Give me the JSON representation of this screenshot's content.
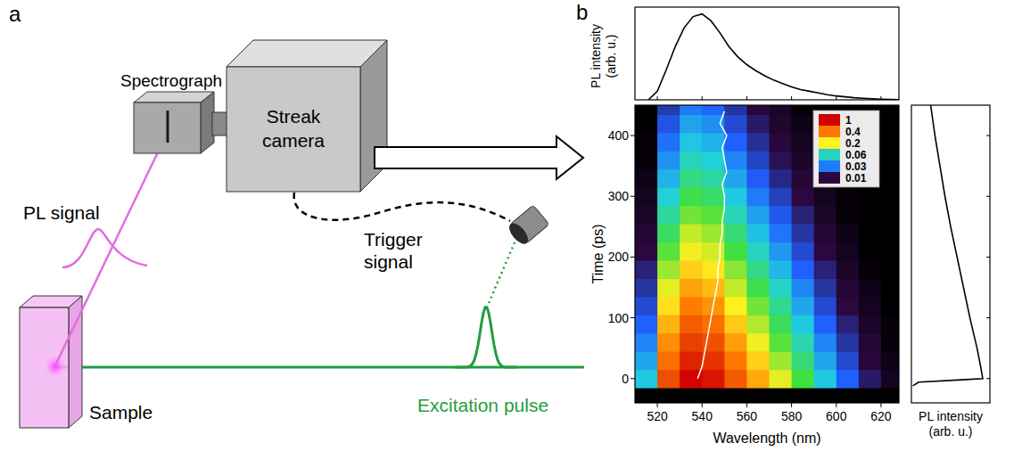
{
  "diagram": {
    "letter": "a",
    "spectrograph": "Spectrograph",
    "streak_camera": "Streak camera",
    "pl_signal": "PL signal",
    "trigger_signal": "Trigger signal",
    "sample": "Sample",
    "excitation_pulse": "Excitation pulse"
  },
  "chart_data": {
    "type": "heatmap",
    "letter": "b",
    "x_label": "Wavelength (nm)",
    "y_label": "Time (ps)",
    "xlim": [
      510,
      628
    ],
    "xticks": [
      520,
      540,
      560,
      580,
      600,
      620
    ],
    "ylim": [
      -40,
      450
    ],
    "yticks": [
      0,
      100,
      200,
      300,
      400
    ],
    "x_centers": [
      515,
      525,
      535,
      545,
      555,
      565,
      575,
      585,
      595,
      605,
      615,
      625
    ],
    "y_centers": [
      0,
      30,
      60,
      90,
      120,
      150,
      180,
      210,
      240,
      270,
      300,
      330,
      360,
      390,
      420,
      450
    ],
    "cells": [
      [
        0.05,
        0.55,
        0.97,
        0.85,
        0.5,
        0.3,
        0.18,
        0.1,
        0.05,
        0.025,
        0.012,
        0.005
      ],
      [
        0.04,
        0.43,
        0.77,
        0.67,
        0.4,
        0.24,
        0.14,
        0.079,
        0.04,
        0.02,
        0.009,
        0.004
      ],
      [
        0.032,
        0.35,
        0.61,
        0.54,
        0.32,
        0.19,
        0.11,
        0.063,
        0.032,
        0.016,
        0.008,
        0.003
      ],
      [
        0.025,
        0.28,
        0.49,
        0.43,
        0.25,
        0.15,
        0.09,
        0.05,
        0.025,
        0.013,
        0.006,
        0.003
      ],
      [
        0.02,
        0.22,
        0.39,
        0.34,
        0.2,
        0.12,
        0.072,
        0.04,
        0.02,
        0.01,
        0.005,
        0.002
      ],
      [
        0.016,
        0.18,
        0.31,
        0.27,
        0.16,
        0.096,
        0.058,
        0.032,
        0.016,
        0.008,
        0.004,
        0.002
      ],
      [
        0.013,
        0.14,
        0.24,
        0.21,
        0.13,
        0.075,
        0.045,
        0.025,
        0.013,
        0.006,
        0.003,
        0.001
      ],
      [
        0.01,
        0.11,
        0.19,
        0.17,
        0.1,
        0.06,
        0.036,
        0.02,
        0.01,
        0.005,
        0.002,
        0.001
      ],
      [
        0.008,
        0.088,
        0.16,
        0.14,
        0.08,
        0.048,
        0.029,
        0.016,
        0.008,
        0.004,
        0.002,
        0.001
      ],
      [
        0.006,
        0.069,
        0.12,
        0.11,
        0.063,
        0.038,
        0.023,
        0.013,
        0.006,
        0.003,
        0.002,
        0.001
      ],
      [
        0.005,
        0.055,
        0.097,
        0.085,
        0.05,
        0.03,
        0.018,
        0.01,
        0.005,
        0.003,
        0.001,
        0.001
      ],
      [
        0.004,
        0.043,
        0.077,
        0.067,
        0.04,
        0.024,
        0.014,
        0.008,
        0.004,
        0.002,
        0.001,
        0
      ],
      [
        0.003,
        0.035,
        0.061,
        0.054,
        0.032,
        0.019,
        0.011,
        0.006,
        0.003,
        0.002,
        0.001,
        0
      ],
      [
        0.003,
        0.028,
        0.049,
        0.043,
        0.025,
        0.015,
        0.009,
        0.005,
        0.003,
        0.001,
        0.001,
        0
      ],
      [
        0.002,
        0.022,
        0.039,
        0.034,
        0.02,
        0.012,
        0.007,
        0.004,
        0.002,
        0.001,
        0,
        0
      ],
      [
        0.002,
        0.017,
        0.03,
        0.026,
        0.016,
        0.009,
        0.006,
        0.003,
        0.002,
        0.001,
        0,
        0
      ]
    ],
    "colorbar": {
      "range": [
        0.01,
        1
      ],
      "ticks": [
        1,
        0.4,
        0.2,
        0.06,
        0.03,
        0.01
      ]
    },
    "peak_trace": {
      "time": [
        0,
        20,
        40,
        60,
        80,
        100,
        120,
        140,
        160,
        180,
        200,
        220,
        240,
        260,
        280,
        300,
        320,
        340,
        360,
        380,
        400,
        420,
        440
      ],
      "wavelength": [
        538,
        540,
        541,
        542,
        543,
        544,
        545,
        546,
        547,
        547,
        548,
        548,
        549,
        549,
        550,
        550,
        549,
        551,
        550,
        549,
        551,
        548,
        550
      ],
      "color": "#ffffff"
    },
    "spectrum": {
      "y_label": "PL intensity (arb. u.)",
      "x": [
        516,
        520,
        524,
        528,
        532,
        536,
        540,
        544,
        548,
        552,
        556,
        560,
        564,
        568,
        572,
        576,
        580,
        584,
        588,
        592,
        596,
        600,
        604,
        608,
        612,
        616,
        620,
        624,
        628
      ],
      "values": [
        0,
        0.1,
        0.35,
        0.62,
        0.84,
        0.97,
        1.0,
        0.92,
        0.78,
        0.62,
        0.5,
        0.41,
        0.34,
        0.28,
        0.23,
        0.19,
        0.15,
        0.12,
        0.1,
        0.08,
        0.06,
        0.045,
        0.035,
        0.025,
        0.018,
        0.012,
        0.008,
        0.005,
        0.003
      ],
      "ylim": [
        0,
        1.08
      ],
      "tick_labels": false
    },
    "decay": {
      "x_label": "PL intensity (arb. u.)",
      "time": [
        -12,
        -6,
        -2,
        0,
        20,
        50,
        100,
        150,
        200,
        250,
        300,
        350,
        400,
        450
      ],
      "values": [
        0.02,
        0.1,
        0.7,
        1.0,
        0.97,
        0.92,
        0.82,
        0.73,
        0.64,
        0.55,
        0.47,
        0.4,
        0.33,
        0.27
      ],
      "xlim": [
        0,
        1.1
      ],
      "tick_labels": false
    }
  }
}
